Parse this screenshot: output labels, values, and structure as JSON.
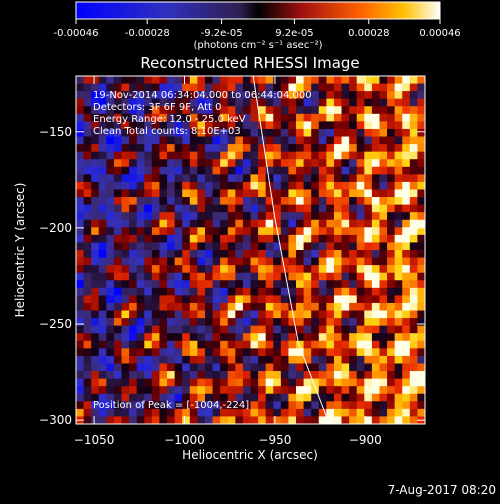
{
  "chart_data": {
    "type": "heatmap",
    "title": "Reconstructed RHESSI Image",
    "xlabel": "Heliocentric X (arcsec)",
    "ylabel": "Heliocentric Y (arcsec)",
    "xlim": [
      -1060,
      -867
    ],
    "ylim": [
      -302,
      -121
    ],
    "xticks": [
      -1050,
      -1000,
      -950,
      -900
    ],
    "yticks": [
      -300,
      -250,
      -200,
      -150
    ],
    "colorbar": {
      "unit_label": "(photons cm⁻² s⁻¹ asec⁻²)",
      "range": [
        -0.00046,
        0.00046
      ],
      "tick_labels": [
        "-0.00046",
        "-0.00028",
        "-9.2e-05",
        "9.2e-05",
        "0.00028",
        "0.00046"
      ],
      "tick_values": [
        -0.00046,
        -0.00028,
        -9.2e-05,
        9.2e-05,
        0.00028,
        0.00046
      ]
    },
    "annotations": [
      "19-Nov-2014 06:34:04.000 to 06:44:04.000",
      "Detectors: 3F 6F 9F, Att 0",
      "Energy Range: 12.0 - 25.0 keV",
      "Clean    Total counts: 8.10E+03"
    ],
    "peak_label": "Position of Peak = [-1004,-224]",
    "peak": [
      -1004,
      -224
    ],
    "limb_curve": [
      [
        -962,
        -121
      ],
      [
        -950,
        -195
      ],
      [
        -937,
        -260
      ],
      [
        -920,
        -302
      ]
    ],
    "colors": {
      "background": "#000000",
      "limb": "#ffffff"
    }
  },
  "footer": {
    "timestamp": "7-Aug-2017 08:20"
  }
}
